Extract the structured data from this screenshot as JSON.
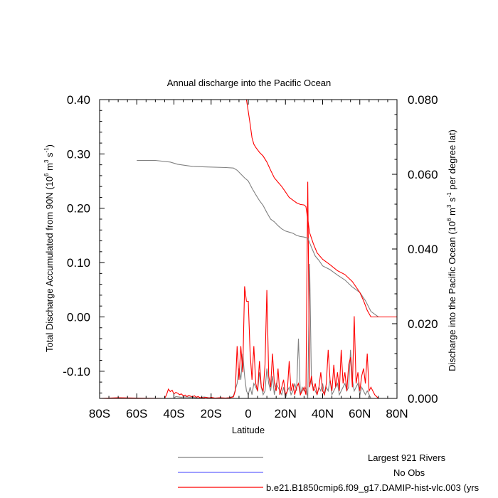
{
  "chart_data": {
    "type": "line",
    "title": "Annual discharge into the Pacific Ocean",
    "xlabel": "Latitude",
    "ylabel_left_main": "Total Discharge Accumulated from 90N (10",
    "ylabel_left_sup1": "6",
    "ylabel_left_mid": " m",
    "ylabel_left_sup2": "3",
    "ylabel_left_mid2": " s",
    "ylabel_left_sup3": "-1",
    "ylabel_left_end": ")",
    "ylabel_right_main": "Discharge into the Pacific Ocean (10",
    "ylabel_right_sup1": "6",
    "ylabel_right_mid": " m",
    "ylabel_right_sup2": "3",
    "ylabel_right_mid2": " s",
    "ylabel_right_sup3": "-1",
    "ylabel_right_end": " per degree lat)",
    "xlim": [
      -80,
      80
    ],
    "ylim_left": [
      -0.15,
      0.4
    ],
    "ylim_right": [
      0.0,
      0.08
    ],
    "x_ticks": [
      {
        "value": -80,
        "label": "80S"
      },
      {
        "value": -60,
        "label": "60S"
      },
      {
        "value": -40,
        "label": "40S"
      },
      {
        "value": -20,
        "label": "20S"
      },
      {
        "value": 0,
        "label": "0"
      },
      {
        "value": 20,
        "label": "20N"
      },
      {
        "value": 40,
        "label": "40N"
      },
      {
        "value": 60,
        "label": "60N"
      },
      {
        "value": 80,
        "label": "80N"
      }
    ],
    "y_left_ticks": [
      {
        "value": 0.4,
        "label": "0.40"
      },
      {
        "value": 0.3,
        "label": "0.30"
      },
      {
        "value": 0.2,
        "label": "0.20"
      },
      {
        "value": 0.1,
        "label": "0.10"
      },
      {
        "value": 0.0,
        "label": "0.00"
      },
      {
        "value": -0.1,
        "label": "-0.10"
      }
    ],
    "y_right_ticks": [
      {
        "value": 0.08,
        "label": "0.080"
      },
      {
        "value": 0.06,
        "label": "0.060"
      },
      {
        "value": 0.04,
        "label": "0.040"
      },
      {
        "value": 0.02,
        "label": "0.020"
      },
      {
        "value": 0.0,
        "label": "0.000"
      }
    ],
    "legend_position": "bottom",
    "series": [
      {
        "name": "Largest 921 Rivers",
        "color": "#808080",
        "axis": "left",
        "x": [
          -60,
          -50,
          -42,
          -38,
          -30,
          -22,
          -12,
          -8,
          -6,
          -4,
          -2,
          0,
          2,
          4,
          6,
          8,
          10,
          12,
          14,
          16,
          18,
          20,
          22,
          24,
          26,
          28,
          30,
          32,
          34,
          36,
          38,
          40,
          44,
          48,
          52,
          56,
          60,
          63,
          66,
          70,
          80
        ],
        "y": [
          0.288,
          0.288,
          0.285,
          0.281,
          0.277,
          0.276,
          0.275,
          0.274,
          0.27,
          0.263,
          0.256,
          0.25,
          0.237,
          0.225,
          0.214,
          0.205,
          0.192,
          0.18,
          0.175,
          0.168,
          0.162,
          0.158,
          0.156,
          0.154,
          0.15,
          0.148,
          0.147,
          0.145,
          0.128,
          0.112,
          0.104,
          0.094,
          0.087,
          0.077,
          0.068,
          0.055,
          0.045,
          0.03,
          0.01,
          0.0,
          0.0
        ]
      },
      {
        "name": "No Obs",
        "color": "#6666ff",
        "axis": "left",
        "x": [],
        "y": []
      },
      {
        "name": "b.e21.B1850cmip6.f09_g17.DAMIP-hist-vlc.003 (yrs",
        "color": "#ff0000",
        "axis": "left",
        "x": [
          -1,
          0,
          1,
          2,
          3,
          4,
          6,
          8,
          10,
          12,
          14,
          16,
          18,
          20,
          22,
          24,
          26,
          28,
          30,
          31,
          32,
          33,
          35,
          37,
          40,
          44,
          48,
          52,
          56,
          60,
          62,
          64,
          66,
          70,
          80
        ],
        "y": [
          0.4,
          0.378,
          0.355,
          0.33,
          0.318,
          0.312,
          0.303,
          0.296,
          0.285,
          0.27,
          0.256,
          0.248,
          0.24,
          0.23,
          0.22,
          0.215,
          0.21,
          0.207,
          0.206,
          0.203,
          0.18,
          0.155,
          0.135,
          0.118,
          0.106,
          0.096,
          0.085,
          0.078,
          0.065,
          0.045,
          0.03,
          0.012,
          0.0,
          0.0,
          0.0
        ]
      }
    ],
    "discharge_series": [
      {
        "name": "Largest 921 Rivers",
        "color": "#808080",
        "axis": "right",
        "x": [
          -80,
          -40,
          -39,
          -36,
          -35,
          -30,
          -25,
          -24,
          -20,
          -15,
          -10,
          -8,
          -6,
          -5,
          -4,
          -3,
          -2,
          -1,
          0,
          1,
          2,
          3,
          4,
          5,
          6,
          7,
          8,
          9,
          10,
          11,
          12,
          13,
          14,
          15,
          16,
          17,
          18,
          19,
          20,
          21,
          22,
          23,
          24,
          25,
          26,
          27,
          28,
          29,
          30,
          31,
          32,
          33,
          34,
          35,
          36,
          37,
          38,
          39,
          40,
          41,
          42,
          43,
          44,
          45,
          46,
          47,
          48,
          49,
          50,
          51,
          52,
          53,
          54,
          55,
          56,
          57,
          58,
          59,
          60,
          61,
          62,
          63,
          64,
          65,
          66,
          70,
          80
        ],
        "y": [
          0.0,
          0.0,
          0.0005,
          0.0003,
          0.0004,
          0.0003,
          0.0,
          0.0004,
          0.0001,
          0.0,
          0.0002,
          0.0006,
          0.004,
          0.008,
          0.005,
          0.012,
          0.006,
          0.002,
          0.001,
          0.003,
          0.001,
          0.004,
          0.003,
          0.002,
          0.007,
          0.003,
          0.001,
          0.002,
          0.008,
          0.004,
          0.002,
          0.006,
          0.001,
          0.004,
          0.003,
          0.002,
          0.001,
          0.003,
          0.0,
          0.002,
          0.003,
          0.001,
          0.002,
          0.004,
          0.002,
          0.016,
          0.001,
          0.003,
          0.002,
          0.003,
          0.0,
          0.036,
          0.004,
          0.003,
          0.002,
          0.001,
          0.003,
          0.002,
          0.004,
          0.001,
          0.003,
          0.002,
          0.005,
          0.001,
          0.002,
          0.003,
          0.004,
          0.001,
          0.002,
          0.003,
          0.004,
          0.002,
          0.003,
          0.013,
          0.005,
          0.002,
          0.003,
          0.004,
          0.001,
          0.003,
          0.002,
          0.001,
          0.002,
          0.001,
          0.0,
          0.0,
          0.0
        ]
      },
      {
        "name": "b.e21.B1850cmip6.f09_g17.DAMIP-hist-vlc.003 (yrs",
        "color": "#ff0000",
        "axis": "right",
        "x": [
          -80,
          -70,
          -60,
          -45,
          -44,
          -43,
          -42,
          -41,
          -40,
          -39,
          -38,
          -37,
          -36,
          -35,
          -34,
          -33,
          -32,
          -31,
          -30,
          -29,
          -28,
          -27,
          -26,
          -25,
          -24,
          -23,
          -22,
          -21,
          -20,
          -18,
          -15,
          -12,
          -10,
          -8,
          -7,
          -6,
          -5,
          -4,
          -3,
          -2,
          -1,
          0,
          1,
          2,
          3,
          4,
          5,
          6,
          7,
          8,
          9,
          10,
          11,
          12,
          13,
          14,
          15,
          16,
          17,
          18,
          19,
          20,
          21,
          22,
          23,
          24,
          25,
          26,
          27,
          28,
          29,
          30,
          31,
          32,
          33,
          34,
          35,
          36,
          37,
          38,
          39,
          40,
          41,
          42,
          43,
          44,
          45,
          46,
          47,
          48,
          49,
          50,
          51,
          52,
          53,
          54,
          55,
          56,
          57,
          58,
          59,
          60,
          61,
          62,
          63,
          64,
          65,
          66,
          68,
          70,
          80
        ],
        "y": [
          0.0,
          0.0002,
          0.0001,
          0.0,
          0.001,
          0.0025,
          0.0018,
          0.0022,
          0.0012,
          0.0016,
          0.0014,
          0.001,
          0.0012,
          0.0007,
          0.0009,
          0.0005,
          0.0008,
          0.0006,
          0.0004,
          0.0007,
          0.0003,
          0.0005,
          0.0002,
          0.0003,
          0.0001,
          0.0003,
          0.0002,
          0.0001,
          0.0003,
          0.0001,
          0.0002,
          0.0001,
          0.0002,
          0.0004,
          0.002,
          0.014,
          0.005,
          0.014,
          0.007,
          0.03,
          0.026,
          0.026,
          0.012,
          0.005,
          0.014,
          0.004,
          0.002,
          0.01,
          0.003,
          0.002,
          0.009,
          0.029,
          0.006,
          0.003,
          0.012,
          0.004,
          0.002,
          0.008,
          0.001,
          0.003,
          0.005,
          0.001,
          0.002,
          0.01,
          0.002,
          0.004,
          0.001,
          0.003,
          0.004,
          0.001,
          0.002,
          0.003,
          0.001,
          0.058,
          0.003,
          0.006,
          0.002,
          0.004,
          0.001,
          0.003,
          0.007,
          0.002,
          0.001,
          0.004,
          0.013,
          0.005,
          0.002,
          0.009,
          0.003,
          0.007,
          0.002,
          0.013,
          0.004,
          0.007,
          0.002,
          0.009,
          0.011,
          0.003,
          0.022,
          0.004,
          0.007,
          0.002,
          0.006,
          0.008,
          0.004,
          0.012,
          0.002,
          0.003,
          0.001,
          0.0,
          0.0
        ]
      }
    ]
  }
}
